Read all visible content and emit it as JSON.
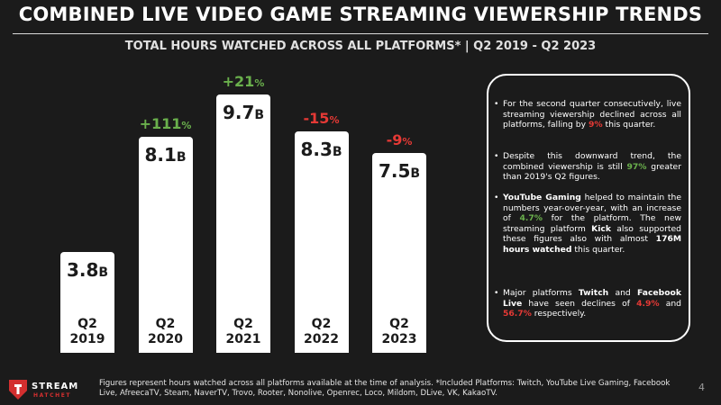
{
  "header": {
    "title": "COMBINED LIVE VIDEO GAME STREAMING VIEWERSHIP TRENDS",
    "subtitle": "TOTAL HOURS WATCHED ACROSS ALL PLATFORMS* | Q2 2019 - Q2 2023"
  },
  "chart_data": {
    "type": "bar",
    "categories": [
      "Q2\n2019",
      "Q2\n2020",
      "Q2\n2021",
      "Q2\n2022",
      "Q2\n2023"
    ],
    "values": [
      3.8,
      8.1,
      9.7,
      8.3,
      7.5
    ],
    "value_labels": [
      "3.8",
      "8.1",
      "9.7",
      "8.3",
      "7.5"
    ],
    "value_unit": "B",
    "changes": [
      null,
      "+111",
      "+21",
      "-15",
      "-9"
    ],
    "change_unit": "%",
    "ylim": [
      0,
      10
    ],
    "colors": {
      "bar": "#ffffff",
      "positive": "#6ab04c",
      "negative": "#e53935"
    }
  },
  "notes": {
    "n1": {
      "a": "For the second quarter consecutively, live streaming viewership declined across all platforms, falling by ",
      "b": "9%",
      "c": " this quarter."
    },
    "n2": {
      "a": "Despite this downward trend, the combined viewership is still ",
      "b": "97%",
      "c": " greater than 2019's Q2 figures."
    },
    "n3": {
      "a": "YouTube Gaming",
      "b": " helped to maintain the numbers year-over-year, with an increase of ",
      "c": "4.7%",
      "d": " for the platform. The new streaming platform ",
      "e": "Kick",
      "f": " also supported these figures also with almost ",
      "g": "176M hours watched",
      "h": " this quarter."
    },
    "n4": {
      "a": "Major platforms ",
      "b": "Twitch",
      "c": " and ",
      "d": "Facebook Live",
      "e": " have seen declines of ",
      "f": "4.9%",
      "g": " and ",
      "h": "56.7%",
      "i": " respectively."
    }
  },
  "footer": {
    "logo_top": "STREAM",
    "logo_bottom": "HATCHET",
    "note": "Figures represent hours watched across all platforms available at the time of analysis. *Included Platforms: Twitch, YouTube Live Gaming, Facebook Live, AfreecaTV, Steam, NaverTV, Trovo, Rooter, Nonolive, Openrec, Loco, Mildom, DLive, VK, KakaoTV.",
    "page_number": "4"
  }
}
